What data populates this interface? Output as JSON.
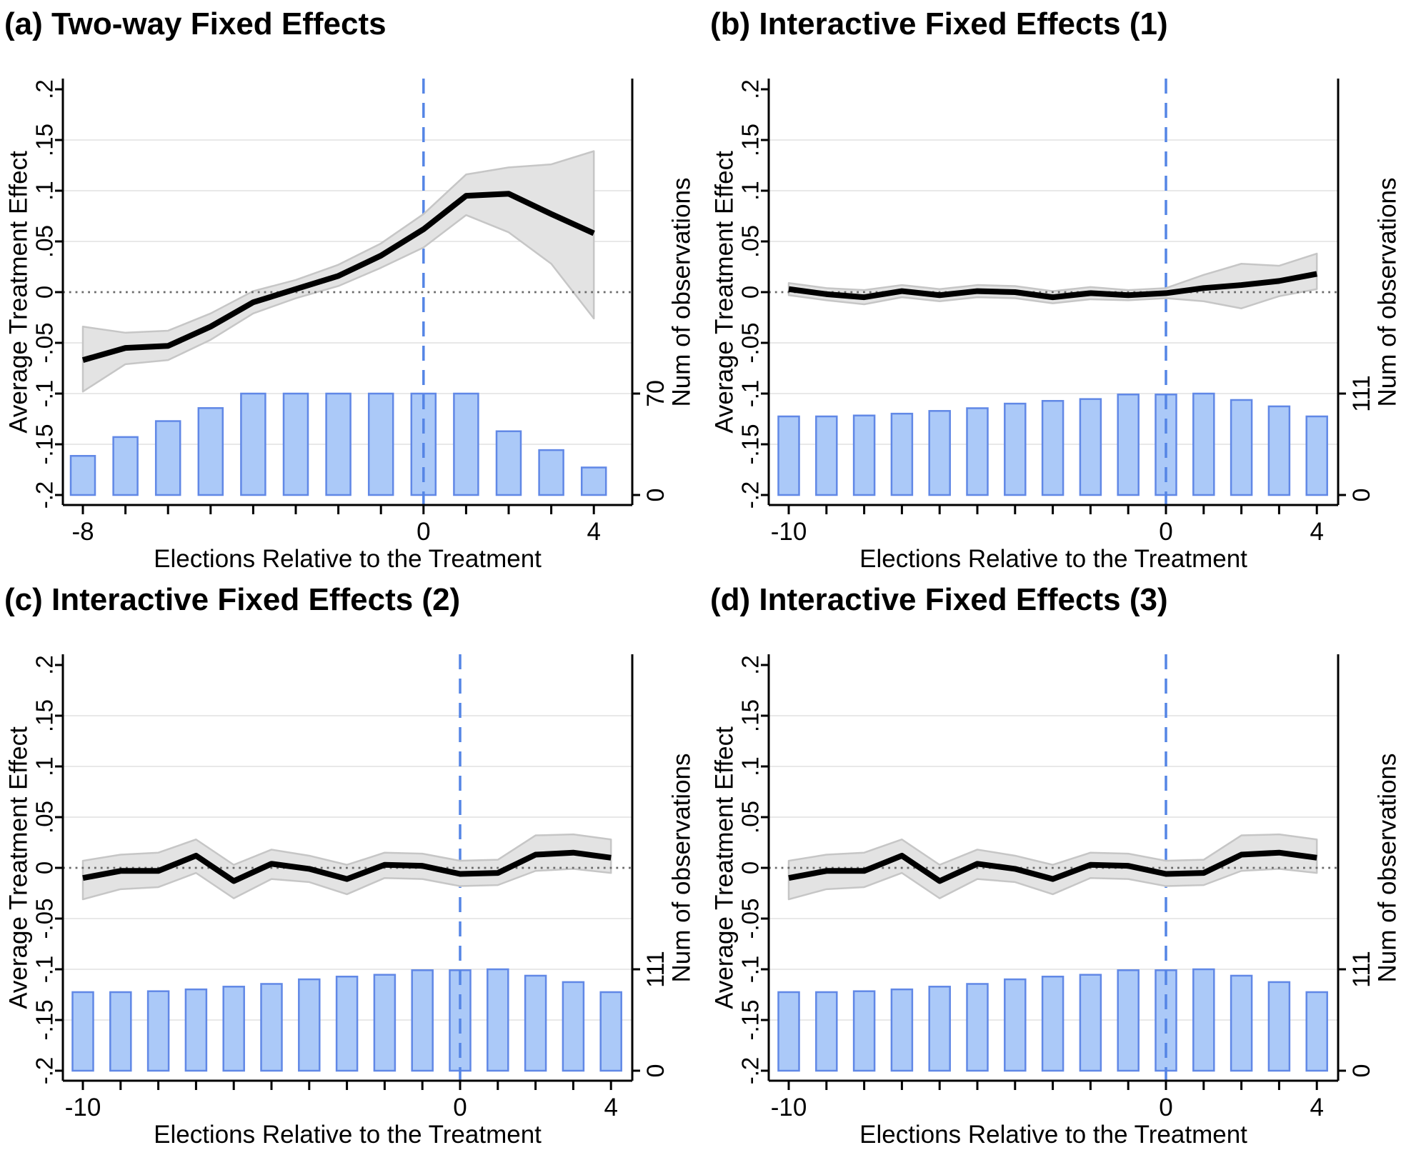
{
  "figure": {
    "background": "#ffffff"
  },
  "colors": {
    "bar_fill": "#abc9f8",
    "bar_border": "#6188e6",
    "treatment_dashed_line": "#5585e5",
    "ci_band_fill": "#e3e3e3",
    "ci_band_edge": "#c6c6c6",
    "ate_line": "#000000",
    "gridline": "#e8e8e8",
    "zero_dotted_line": "#6a6a6a",
    "axis": "#000000"
  },
  "chart_data": {
    "type": "line+bar",
    "shared": {
      "ylabel": "Average Treatment Effect",
      "y2label": "Num of observations",
      "xlabel": "Elections Relative to the Treatment",
      "ylim": [
        -0.2,
        0.2
      ],
      "y_ticks": [
        {
          "value": 0.2,
          "label": ".2"
        },
        {
          "value": 0.15,
          "label": ".15"
        },
        {
          "value": 0.1,
          "label": ".1"
        },
        {
          "value": 0.05,
          "label": ".05"
        },
        {
          "value": 0,
          "label": "0"
        },
        {
          "value": -0.05,
          "label": "-.05"
        },
        {
          "value": -0.1,
          "label": "-.1"
        },
        {
          "value": -0.15,
          "label": "-.15"
        },
        {
          "value": -0.2,
          "label": "-.2"
        }
      ],
      "gridline_values": [
        0.15,
        0.1,
        0.05,
        -0.05,
        -0.1,
        -0.15
      ],
      "zero_line_value": 0,
      "treatment_line_x": 0,
      "legend": "none",
      "grid": "on"
    },
    "panels": [
      {
        "id": "a",
        "title": "(a) Two-way Fixed Effects",
        "x": [
          -8,
          -7,
          -6,
          -5,
          -4,
          -3,
          -2,
          -1,
          0,
          1,
          2,
          3,
          4
        ],
        "ate": [
          -0.067,
          -0.055,
          -0.053,
          -0.034,
          -0.01,
          0.003,
          0.016,
          0.036,
          0.062,
          0.095,
          0.097,
          0.077,
          0.058
        ],
        "ci_upper": [
          -0.034,
          -0.04,
          -0.038,
          -0.021,
          0.001,
          0.012,
          0.027,
          0.048,
          0.077,
          0.116,
          0.123,
          0.126,
          0.139
        ],
        "ci_lower": [
          -0.098,
          -0.071,
          -0.067,
          -0.047,
          -0.021,
          -0.006,
          0.006,
          0.024,
          0.044,
          0.076,
          0.059,
          0.028,
          -0.026
        ],
        "observations": [
          27,
          40,
          51,
          60,
          70,
          70,
          70,
          70,
          70,
          70,
          44,
          31,
          19
        ],
        "obs_axis": {
          "min": 0,
          "max": 70,
          "min_label": "0",
          "max_label": "70"
        },
        "x_tick_labels": [
          {
            "x": -8,
            "label": "-8"
          },
          {
            "x": 0,
            "label": "0"
          },
          {
            "x": 4,
            "label": "4"
          }
        ]
      },
      {
        "id": "b",
        "title": "(b) Interactive Fixed Effects (1)",
        "x": [
          -10,
          -9,
          -8,
          -7,
          -6,
          -5,
          -4,
          -3,
          -2,
          -1,
          0,
          1,
          2,
          3,
          4
        ],
        "ate": [
          0.003,
          -0.002,
          -0.005,
          0.001,
          -0.003,
          0.001,
          0.0,
          -0.005,
          -0.001,
          -0.003,
          -0.001,
          0.004,
          0.007,
          0.011,
          0.018
        ],
        "ci_upper": [
          0.009,
          0.004,
          0.002,
          0.007,
          0.003,
          0.007,
          0.006,
          0.001,
          0.005,
          0.002,
          0.004,
          0.017,
          0.028,
          0.026,
          0.038
        ],
        "ci_lower": [
          -0.003,
          -0.008,
          -0.012,
          -0.005,
          -0.009,
          -0.005,
          -0.006,
          -0.011,
          -0.007,
          -0.008,
          -0.006,
          -0.009,
          -0.016,
          -0.004,
          0.003
        ],
        "observations": [
          86,
          86,
          87,
          89,
          92,
          95,
          100,
          103,
          105,
          110,
          110,
          111,
          104,
          97,
          86
        ],
        "obs_axis": {
          "min": 0,
          "max": 111,
          "min_label": "0",
          "max_label": "111"
        },
        "x_tick_labels": [
          {
            "x": -10,
            "label": "-10"
          },
          {
            "x": 0,
            "label": "0"
          },
          {
            "x": 4,
            "label": "4"
          }
        ]
      },
      {
        "id": "c",
        "title": "(c) Interactive Fixed Effects (2)",
        "x": [
          -10,
          -9,
          -8,
          -7,
          -6,
          -5,
          -4,
          -3,
          -2,
          -1,
          0,
          1,
          2,
          3,
          4
        ],
        "ate": [
          -0.01,
          -0.003,
          -0.003,
          0.012,
          -0.013,
          0.004,
          -0.001,
          -0.011,
          0.003,
          0.002,
          -0.006,
          -0.005,
          0.013,
          0.015,
          0.01
        ],
        "ci_upper": [
          0.007,
          0.013,
          0.015,
          0.028,
          0.003,
          0.018,
          0.012,
          0.003,
          0.015,
          0.014,
          0.007,
          0.008,
          0.032,
          0.033,
          0.028
        ],
        "ci_lower": [
          -0.031,
          -0.021,
          -0.019,
          -0.005,
          -0.03,
          -0.011,
          -0.014,
          -0.026,
          -0.01,
          -0.011,
          -0.018,
          -0.017,
          -0.003,
          -0.001,
          -0.005
        ],
        "observations": [
          86,
          86,
          87,
          89,
          92,
          95,
          100,
          103,
          105,
          110,
          110,
          111,
          104,
          97,
          86
        ],
        "obs_axis": {
          "min": 0,
          "max": 111,
          "min_label": "0",
          "max_label": "111"
        },
        "x_tick_labels": [
          {
            "x": -10,
            "label": "-10"
          },
          {
            "x": 0,
            "label": "0"
          },
          {
            "x": 4,
            "label": "4"
          }
        ]
      },
      {
        "id": "d",
        "title": "(d) Interactive Fixed Effects (3)",
        "x": [
          -10,
          -9,
          -8,
          -7,
          -6,
          -5,
          -4,
          -3,
          -2,
          -1,
          0,
          1,
          2,
          3,
          4
        ],
        "ate": [
          -0.01,
          -0.003,
          -0.003,
          0.012,
          -0.013,
          0.004,
          -0.001,
          -0.011,
          0.003,
          0.002,
          -0.006,
          -0.005,
          0.013,
          0.015,
          0.01
        ],
        "ci_upper": [
          0.007,
          0.013,
          0.015,
          0.028,
          0.003,
          0.018,
          0.012,
          0.003,
          0.015,
          0.014,
          0.007,
          0.008,
          0.032,
          0.033,
          0.028
        ],
        "ci_lower": [
          -0.031,
          -0.021,
          -0.019,
          -0.005,
          -0.03,
          -0.011,
          -0.014,
          -0.026,
          -0.01,
          -0.011,
          -0.018,
          -0.017,
          -0.003,
          -0.001,
          -0.005
        ],
        "observations": [
          86,
          86,
          87,
          89,
          92,
          95,
          100,
          103,
          105,
          110,
          110,
          111,
          104,
          97,
          86
        ],
        "obs_axis": {
          "min": 0,
          "max": 111,
          "min_label": "0",
          "max_label": "111"
        },
        "x_tick_labels": [
          {
            "x": -10,
            "label": "-10"
          },
          {
            "x": 0,
            "label": "0"
          },
          {
            "x": 4,
            "label": "4"
          }
        ]
      }
    ]
  }
}
